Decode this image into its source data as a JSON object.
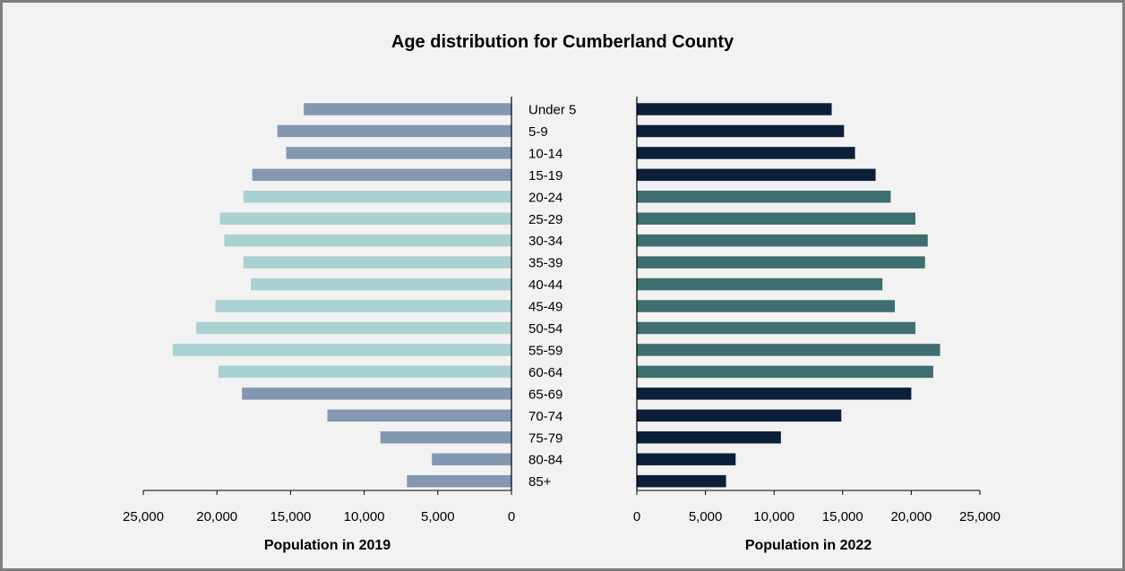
{
  "chart_data": {
    "type": "bar",
    "title": "Age distribution for Cumberland County",
    "orientation": "horizontal",
    "categories": [
      "Under 5",
      "5-9",
      "10-14",
      "15-19",
      "20-24",
      "25-29",
      "30-34",
      "35-39",
      "40-44",
      "45-49",
      "50-54",
      "55-59",
      "60-64",
      "65-69",
      "70-74",
      "75-79",
      "80-84",
      "85+"
    ],
    "highlight_categories": [
      "20-24",
      "25-29",
      "30-34",
      "35-39",
      "40-44",
      "45-49",
      "50-54",
      "55-59",
      "60-64"
    ],
    "panels": [
      {
        "xlabel": "Population in 2019",
        "direction": "reversed",
        "xlim": [
          0,
          25000
        ],
        "ticks": [
          "25,000",
          "20,000",
          "15,000",
          "10,000",
          "5,000",
          "0"
        ],
        "tick_values": [
          25000,
          20000,
          15000,
          10000,
          5000,
          0
        ],
        "colors": {
          "base": "#8497b0",
          "highlight": "#a9d1d2"
        },
        "values": [
          14100,
          15900,
          15300,
          17600,
          18200,
          19800,
          19500,
          18200,
          17700,
          20100,
          21400,
          23000,
          19900,
          18300,
          12500,
          8900,
          5400,
          7100
        ]
      },
      {
        "xlabel": "Population in 2022",
        "direction": "normal",
        "xlim": [
          0,
          25000
        ],
        "ticks": [
          "0",
          "5,000",
          "10,000",
          "15,000",
          "20,000",
          "25,000"
        ],
        "tick_values": [
          0,
          5000,
          10000,
          15000,
          20000,
          25000
        ],
        "colors": {
          "base": "#0b1f3a",
          "highlight": "#3e6e70"
        },
        "values": [
          14200,
          15100,
          15900,
          17400,
          18500,
          20300,
          21200,
          21000,
          17900,
          18800,
          20300,
          22100,
          21600,
          20000,
          14900,
          10500,
          7200,
          6500
        ]
      }
    ]
  }
}
